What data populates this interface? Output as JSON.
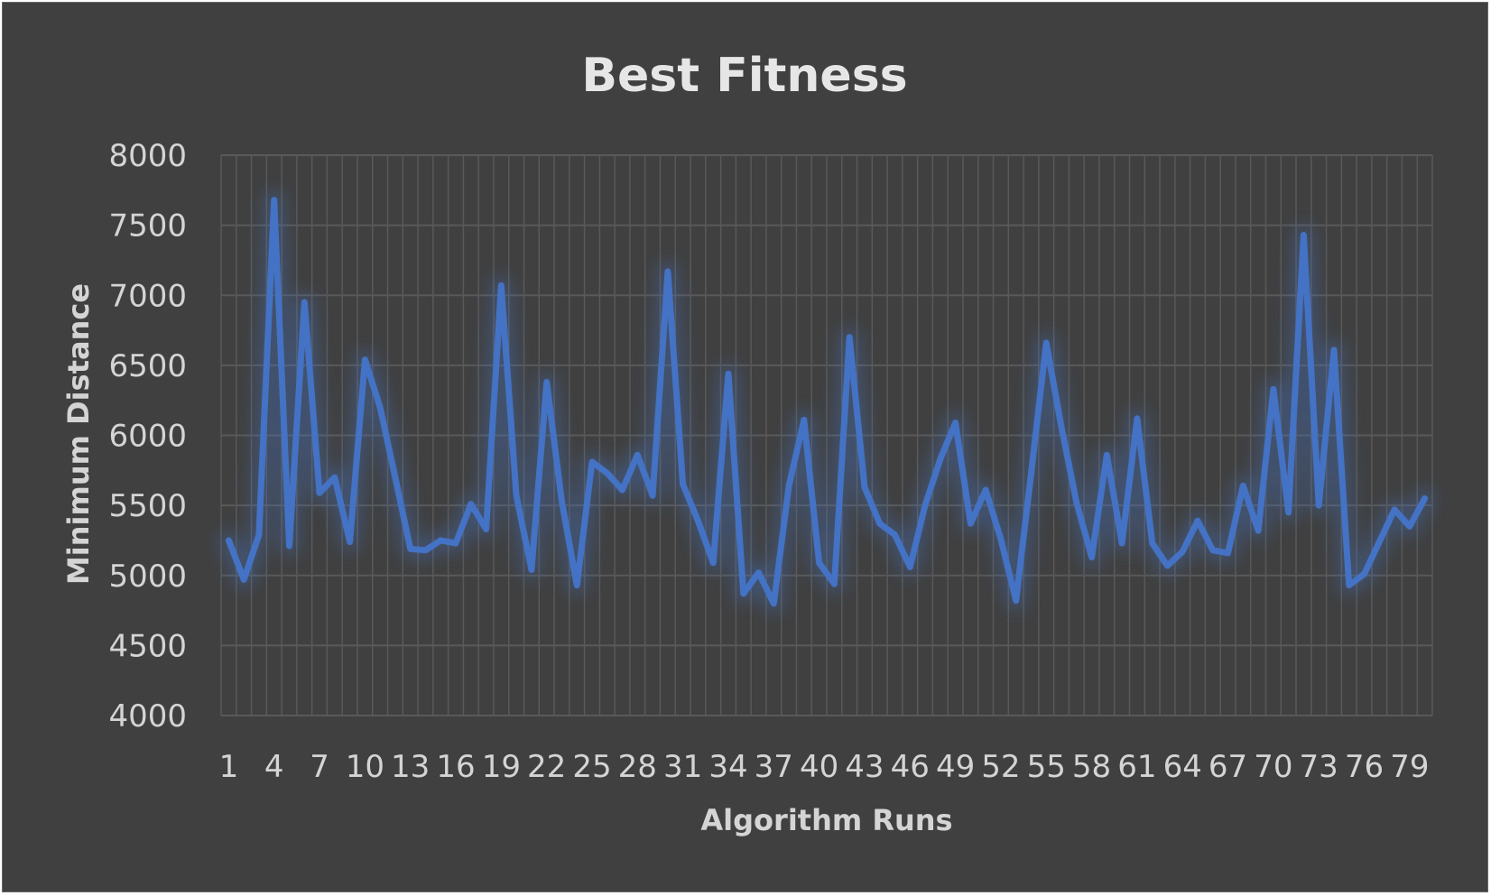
{
  "chart_data": {
    "type": "line",
    "title": "Best Fitness",
    "xlabel": "Algorithm Runs",
    "ylabel": "Minimum Distance",
    "ylim": [
      4000,
      8000
    ],
    "yticks": [
      4000,
      4500,
      5000,
      5500,
      6000,
      6500,
      7000,
      7500,
      8000
    ],
    "x": [
      1,
      2,
      3,
      4,
      5,
      6,
      7,
      8,
      9,
      10,
      11,
      12,
      13,
      14,
      15,
      16,
      17,
      18,
      19,
      20,
      21,
      22,
      23,
      24,
      25,
      26,
      27,
      28,
      29,
      30,
      31,
      32,
      33,
      34,
      35,
      36,
      37,
      38,
      39,
      40,
      41,
      42,
      43,
      44,
      45,
      46,
      47,
      48,
      49,
      50,
      51,
      52,
      53,
      54,
      55,
      56,
      57,
      58,
      59,
      60,
      61,
      62,
      63,
      64,
      65,
      66,
      67,
      68,
      69,
      70,
      71,
      72,
      73,
      74,
      75,
      76,
      77,
      78,
      79,
      80
    ],
    "xtick_labels": [
      "1",
      "4",
      "7",
      "10",
      "13",
      "16",
      "19",
      "22",
      "25",
      "28",
      "31",
      "34",
      "37",
      "40",
      "43",
      "46",
      "49",
      "52",
      "55",
      "58",
      "61",
      "64",
      "67",
      "70",
      "73",
      "76",
      "79"
    ],
    "series": [
      {
        "color": "#4472c4",
        "values": [
          5250,
          4970,
          5290,
          7680,
          5210,
          6950,
          5590,
          5700,
          5240,
          6540,
          6200,
          5700,
          5190,
          5180,
          5250,
          5230,
          5510,
          5330,
          7070,
          5570,
          5040,
          6380,
          5530,
          4930,
          5810,
          5730,
          5610,
          5860,
          5570,
          7170,
          5650,
          5390,
          5090,
          6440,
          4870,
          5020,
          4800,
          5640,
          6110,
          5090,
          4940,
          6700,
          5630,
          5370,
          5290,
          5060,
          5500,
          5830,
          6090,
          5370,
          5610,
          5260,
          4820,
          5730,
          6660,
          6060,
          5520,
          5130,
          5860,
          5230,
          6120,
          5230,
          5070,
          5170,
          5390,
          5180,
          5160,
          5640,
          5320,
          6330,
          5450,
          7430,
          5500,
          6610,
          4930,
          5010,
          5240,
          5470,
          5350,
          5550
        ]
      }
    ],
    "grid": true,
    "background": "#404040",
    "gridline_color": "#595959"
  }
}
